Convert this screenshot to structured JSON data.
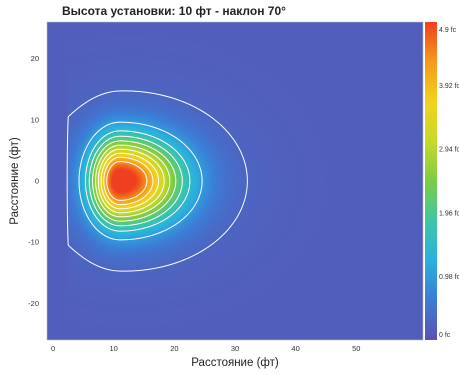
{
  "chart_data": {
    "type": "heatmap",
    "title": "Высота установки: 10 фт - наклон 70°",
    "xlabel": "Расстояние (фт)",
    "ylabel": "Расстояние (фт)",
    "xlim": [
      -1,
      61
    ],
    "ylim": [
      -26,
      26
    ],
    "x_ticks": [
      {
        "value": 0,
        "label": "0"
      },
      {
        "value": 10,
        "label": "10"
      },
      {
        "value": 20,
        "label": "20"
      },
      {
        "value": 30,
        "label": "30"
      },
      {
        "value": 40,
        "label": "40"
      },
      {
        "value": 50,
        "label": "50"
      }
    ],
    "y_ticks": [
      {
        "value": 20,
        "label": "20"
      },
      {
        "value": 10,
        "label": "10"
      },
      {
        "value": 0,
        "label": "0"
      },
      {
        "value": -10,
        "label": "-10"
      },
      {
        "value": -20,
        "label": "-20"
      }
    ],
    "colorbar": {
      "min": 0,
      "max": 4.9,
      "unit": "fc",
      "ticks": [
        {
          "value": 4.9,
          "label": "4.9 fc"
        },
        {
          "value": 3.92,
          "label": "3.92 fc"
        },
        {
          "value": 2.94,
          "label": "2.94 fc"
        },
        {
          "value": 1.96,
          "label": "1.96 fc"
        },
        {
          "value": 0.98,
          "label": "0.98 fc"
        },
        {
          "value": 0,
          "label": "0 fc"
        }
      ],
      "colors": [
        "#5b52b0",
        "#3d7bd6",
        "#2ab0e0",
        "#3ec7a3",
        "#7ccc45",
        "#c7d92a",
        "#f2d21d",
        "#f59a1c",
        "#ef3f20"
      ]
    },
    "peak": {
      "x": 11,
      "y": 0,
      "value": 4.9
    },
    "background_value": 0.18,
    "contour_levels_fc": [
      0.3,
      1.0,
      1.5,
      1.9,
      2.3,
      2.7,
      3.1,
      3.5,
      3.9,
      4.3
    ]
  }
}
